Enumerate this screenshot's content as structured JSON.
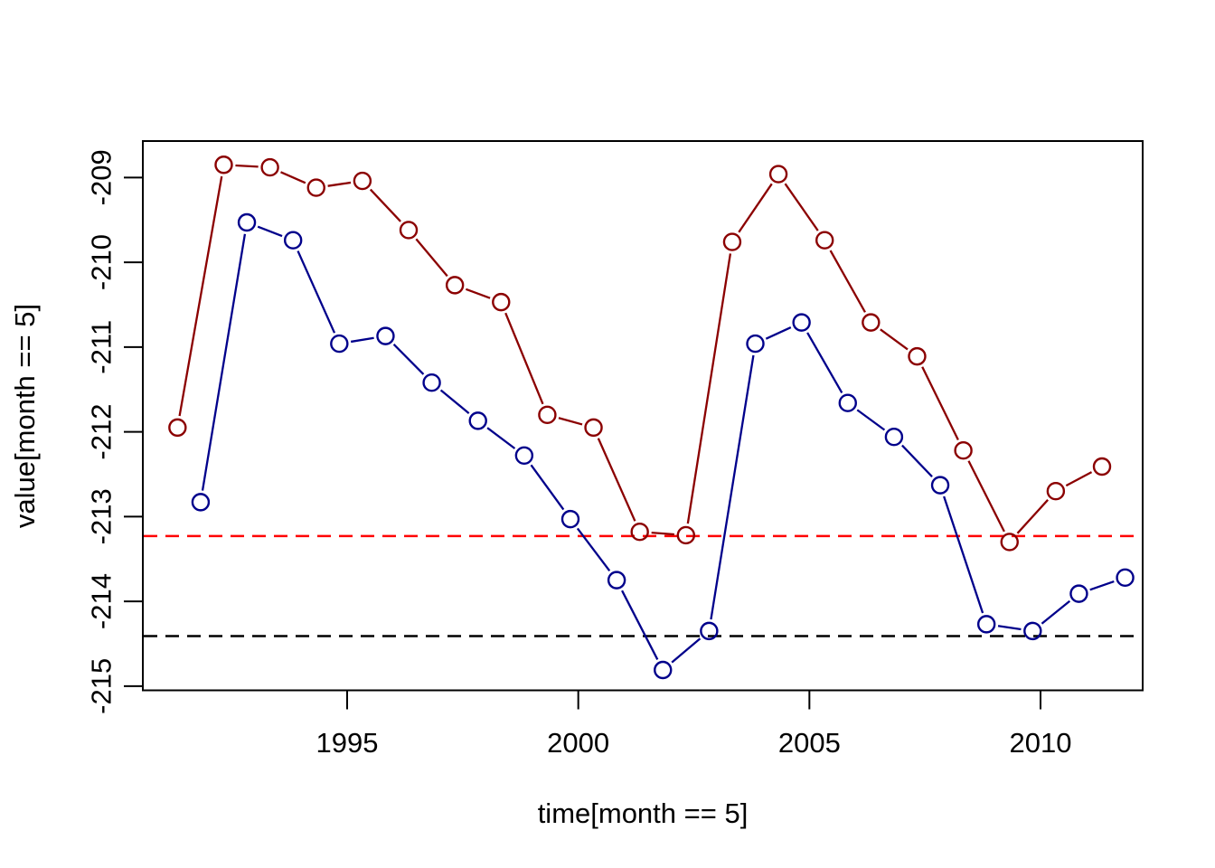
{
  "figure": {
    "background": "#ffffff"
  },
  "chart_data": {
    "type": "line",
    "title": "",
    "xlabel": "time[month == 5]",
    "ylabel": "value[month == 5]",
    "xlim": [
      1990.58,
      2012.21
    ],
    "ylim": [
      -215.05,
      -208.57
    ],
    "x_ticks": [
      "1995",
      "2000",
      "2005",
      "2010"
    ],
    "x_tick_values": [
      1995,
      2000,
      2005,
      2010
    ],
    "y_ticks": [
      "-209",
      "-210",
      "-211",
      "-212",
      "-213",
      "-214",
      "-215"
    ],
    "y_tick_values": [
      -209,
      -210,
      -211,
      -212,
      -213,
      -214,
      -215
    ],
    "grid": false,
    "legend": "none",
    "marker": "open-circle",
    "line_type": "points-with-segments",
    "series": [
      {
        "name": "dark-red-series",
        "color": "#8B0000",
        "x": [
          1991.33,
          1992.33,
          1993.33,
          1994.33,
          1995.33,
          1996.33,
          1997.33,
          1998.33,
          1999.33,
          2000.33,
          2001.33,
          2002.33,
          2003.33,
          2004.33,
          2005.33,
          2006.33,
          2007.33,
          2008.33,
          2009.33,
          2010.33,
          2011.33
        ],
        "values": [
          -211.95,
          -208.85,
          -208.88,
          -209.12,
          -209.04,
          -209.62,
          -210.27,
          -210.47,
          -211.8,
          -211.95,
          -213.18,
          -213.22,
          -209.76,
          -208.96,
          -209.74,
          -210.71,
          -211.11,
          -212.22,
          -213.3,
          -212.7,
          -212.41
        ]
      },
      {
        "name": "dark-blue-series",
        "color": "#00008B",
        "x": [
          1991.83,
          1992.83,
          1993.83,
          1994.83,
          1995.83,
          1996.83,
          1997.83,
          1998.83,
          1999.83,
          2000.83,
          2001.83,
          2002.83,
          2003.83,
          2004.83,
          2005.83,
          2006.83,
          2007.83,
          2008.83,
          2009.83,
          2010.83,
          2011.83
        ],
        "values": [
          -212.83,
          -209.53,
          -209.74,
          -210.96,
          -210.87,
          -211.42,
          -211.87,
          -212.28,
          -213.03,
          -213.75,
          -214.81,
          -214.35,
          -210.96,
          -210.71,
          -211.66,
          -212.06,
          -212.63,
          -214.27,
          -214.35,
          -213.91,
          -213.72
        ]
      }
    ],
    "reference_lines": [
      {
        "name": "red-dashed-threshold",
        "value": -213.23,
        "color": "#FF0000",
        "style": "dashed"
      },
      {
        "name": "black-dashed-threshold",
        "value": -214.41,
        "color": "#000000",
        "style": "dashed"
      }
    ]
  }
}
